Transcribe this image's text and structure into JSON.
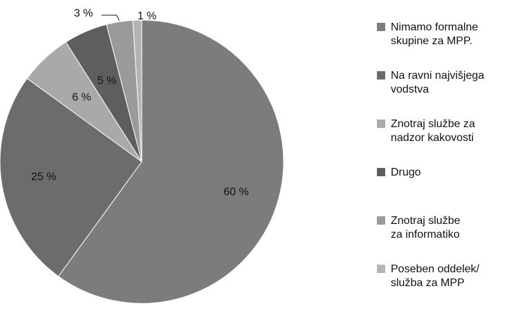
{
  "chart_data": {
    "type": "pie",
    "labels": [
      "Nimamo formalne\nskupine za MPP.",
      "Na ravni najvišjega\nvodstva",
      "Znotraj službe za\nnadzor kakovosti",
      "Drugo",
      "Znotraj službe\nza informatiko",
      "Poseben oddelek/\nslužba za MPP"
    ],
    "values": [
      60,
      25,
      6,
      5,
      3,
      1
    ],
    "value_labels": [
      "60 %",
      "25 %",
      "6 %",
      "5 %",
      "3 %",
      "1 %"
    ],
    "colors": [
      "#7c7c7c",
      "#6c6c6c",
      "#a9a9a9",
      "#5e5e5e",
      "#9a9a9a",
      "#b4b4b4"
    ]
  }
}
